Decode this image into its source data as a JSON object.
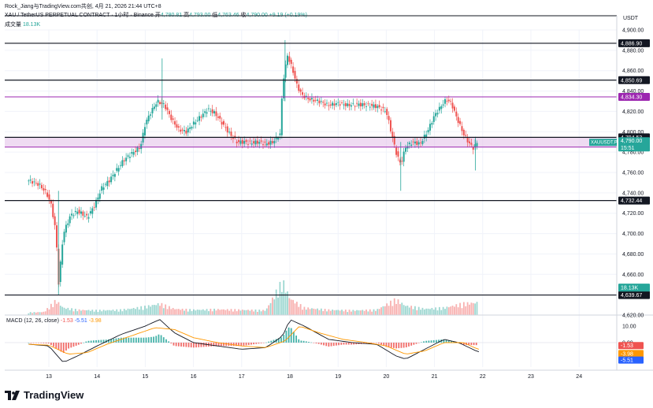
{
  "header": {
    "attribution": "Rock_Jiang与TradingView.com共创, 4月 21, 2026 21:44 UTC+8",
    "symbol": "XAU / TetherUS PERPETUAL CONTRACT · 1小时 · Binance",
    "open_label": "开",
    "open_value": "4,780.81",
    "high_label": "高",
    "high_value": "4,793.00",
    "low_label": "低",
    "low_value": "4,763.46",
    "close_label": "收",
    "close_value": "4,790.00",
    "change": "+9.19 (+0.19%)",
    "volume_label": "成交量",
    "volume_value": "18.13K",
    "unit": "USDT"
  },
  "macd": {
    "label": "MACD (12, 26, close)",
    "hist_value": "-1.53",
    "macd_value": "-5.51",
    "signal_value": "-3.98",
    "axis_ticks": [
      "10.00",
      "0.00"
    ],
    "badges": [
      {
        "text": "-1.53",
        "color": "#ef5350"
      },
      {
        "text": "-3.98",
        "color": "#ff9800"
      },
      {
        "text": "-5.51",
        "color": "#2962ff"
      }
    ]
  },
  "logo_text": "TradingView",
  "colors": {
    "up": "#26a69a",
    "down": "#ef5350",
    "band": "#e1bee7",
    "purple": "#9c27b0",
    "macd": "#2962ff",
    "signal": "#ff9800"
  },
  "chart_data": {
    "type": "candlestick",
    "ylim": [
      4620,
      4900
    ],
    "y_ticks": [
      "4,900.00",
      "4,880.00",
      "4,860.00",
      "4,840.00",
      "4,820.00",
      "4,800.00",
      "4,780.00",
      "4,760.00",
      "4,740.00",
      "4,720.00",
      "4,700.00",
      "4,680.00",
      "4,660.00",
      "4,640.00",
      "4,620.00"
    ],
    "x_ticks": [
      "13",
      "14",
      "15",
      "16",
      "17",
      "18",
      "19",
      "20",
      "21",
      "22",
      "23",
      "24"
    ],
    "horizontal_levels": [
      {
        "value": 4886.9,
        "label": "4,886.90",
        "color": "#131722"
      },
      {
        "value": 4850.69,
        "label": "4,850.69",
        "color": "#131722"
      },
      {
        "value": 4834.3,
        "label": "4,834.30",
        "color": "#9c27b0"
      },
      {
        "value": 4794.53,
        "label": "4,794.53",
        "color": "#131722"
      },
      {
        "value": 4784.96,
        "label": "4,784.96",
        "color": "#9c27b0"
      },
      {
        "value": 4732.44,
        "label": "4,732.44",
        "color": "#131722"
      },
      {
        "value": 4639.67,
        "label": "4,639.67",
        "color": "#131722"
      }
    ],
    "price_badge": {
      "symbol": "XAUUSDT.P",
      "value": "4,790.00",
      "countdown": "15:51"
    },
    "volume_badge": "18.13K",
    "close_path": [
      [
        12.6,
        4752
      ],
      [
        12.8,
        4748
      ],
      [
        12.95,
        4740
      ],
      [
        13.05,
        4728
      ],
      [
        13.15,
        4700
      ],
      [
        13.2,
        4650
      ],
      [
        13.3,
        4700
      ],
      [
        13.45,
        4718
      ],
      [
        13.6,
        4722
      ],
      [
        13.8,
        4716
      ],
      [
        13.95,
        4728
      ],
      [
        14.1,
        4745
      ],
      [
        14.25,
        4752
      ],
      [
        14.4,
        4762
      ],
      [
        14.55,
        4772
      ],
      [
        14.7,
        4778
      ],
      [
        14.9,
        4785
      ],
      [
        15.0,
        4808
      ],
      [
        15.1,
        4818
      ],
      [
        15.25,
        4830
      ],
      [
        15.4,
        4826
      ],
      [
        15.55,
        4812
      ],
      [
        15.7,
        4802
      ],
      [
        15.85,
        4800
      ],
      [
        16.0,
        4808
      ],
      [
        16.15,
        4815
      ],
      [
        16.3,
        4822
      ],
      [
        16.45,
        4818
      ],
      [
        16.6,
        4808
      ],
      [
        16.75,
        4798
      ],
      [
        16.9,
        4790
      ],
      [
        17.05,
        4790
      ],
      [
        17.2,
        4789
      ],
      [
        17.35,
        4790
      ],
      [
        17.5,
        4788
      ],
      [
        17.65,
        4790
      ],
      [
        17.8,
        4798
      ],
      [
        17.85,
        4848
      ],
      [
        17.95,
        4875
      ],
      [
        18.05,
        4862
      ],
      [
        18.15,
        4845
      ],
      [
        18.25,
        4836
      ],
      [
        18.4,
        4832
      ],
      [
        18.6,
        4830
      ],
      [
        18.8,
        4826
      ],
      [
        19.0,
        4828
      ],
      [
        19.2,
        4826
      ],
      [
        19.4,
        4827
      ],
      [
        19.6,
        4826
      ],
      [
        19.8,
        4825
      ],
      [
        20.0,
        4820
      ],
      [
        20.1,
        4800
      ],
      [
        20.2,
        4780
      ],
      [
        20.3,
        4768
      ],
      [
        20.4,
        4785
      ],
      [
        20.55,
        4790
      ],
      [
        20.7,
        4788
      ],
      [
        20.85,
        4800
      ],
      [
        21.0,
        4816
      ],
      [
        21.15,
        4826
      ],
      [
        21.25,
        4832
      ],
      [
        21.35,
        4828
      ],
      [
        21.45,
        4815
      ],
      [
        21.6,
        4798
      ],
      [
        21.7,
        4790
      ],
      [
        21.8,
        4784
      ],
      [
        21.9,
        4790
      ]
    ],
    "volume_path": [
      [
        12.6,
        5
      ],
      [
        12.9,
        6
      ],
      [
        13.15,
        28
      ],
      [
        13.3,
        14
      ],
      [
        13.6,
        10
      ],
      [
        14.0,
        9
      ],
      [
        14.5,
        10
      ],
      [
        15.0,
        16
      ],
      [
        15.3,
        22
      ],
      [
        15.6,
        12
      ],
      [
        16.0,
        10
      ],
      [
        16.5,
        11
      ],
      [
        17.0,
        10
      ],
      [
        17.5,
        9
      ],
      [
        17.85,
        65
      ],
      [
        18.0,
        32
      ],
      [
        18.3,
        14
      ],
      [
        18.8,
        10
      ],
      [
        19.3,
        9
      ],
      [
        19.8,
        10
      ],
      [
        20.2,
        30
      ],
      [
        20.4,
        18
      ],
      [
        20.8,
        12
      ],
      [
        21.2,
        14
      ],
      [
        21.6,
        22
      ],
      [
        21.9,
        24
      ]
    ],
    "macd_line_path": [
      [
        12.6,
        -1
      ],
      [
        13.0,
        -2
      ],
      [
        13.3,
        -12
      ],
      [
        13.6,
        -8
      ],
      [
        14.0,
        -2
      ],
      [
        14.5,
        5
      ],
      [
        15.0,
        10
      ],
      [
        15.3,
        14
      ],
      [
        15.6,
        6
      ],
      [
        16.0,
        0
      ],
      [
        16.5,
        -2
      ],
      [
        17.0,
        -4
      ],
      [
        17.5,
        -3
      ],
      [
        17.85,
        4
      ],
      [
        18.0,
        14
      ],
      [
        18.3,
        10
      ],
      [
        18.8,
        2
      ],
      [
        19.3,
        0
      ],
      [
        19.8,
        -1
      ],
      [
        20.2,
        -8
      ],
      [
        20.4,
        -10
      ],
      [
        20.8,
        -4
      ],
      [
        21.2,
        2
      ],
      [
        21.5,
        0
      ],
      [
        21.9,
        -5.51
      ]
    ],
    "signal_line_path": [
      [
        12.6,
        -1
      ],
      [
        13.0,
        -1.5
      ],
      [
        13.4,
        -7
      ],
      [
        13.8,
        -6
      ],
      [
        14.2,
        -1
      ],
      [
        14.7,
        4
      ],
      [
        15.2,
        9
      ],
      [
        15.6,
        8
      ],
      [
        16.0,
        3
      ],
      [
        16.5,
        0
      ],
      [
        17.0,
        -2
      ],
      [
        17.5,
        -3
      ],
      [
        17.9,
        1
      ],
      [
        18.2,
        10
      ],
      [
        18.6,
        6
      ],
      [
        19.1,
        2
      ],
      [
        19.6,
        0
      ],
      [
        20.0,
        -2
      ],
      [
        20.4,
        -7
      ],
      [
        20.8,
        -5
      ],
      [
        21.2,
        0
      ],
      [
        21.6,
        0
      ],
      [
        21.9,
        -3.98
      ]
    ]
  }
}
